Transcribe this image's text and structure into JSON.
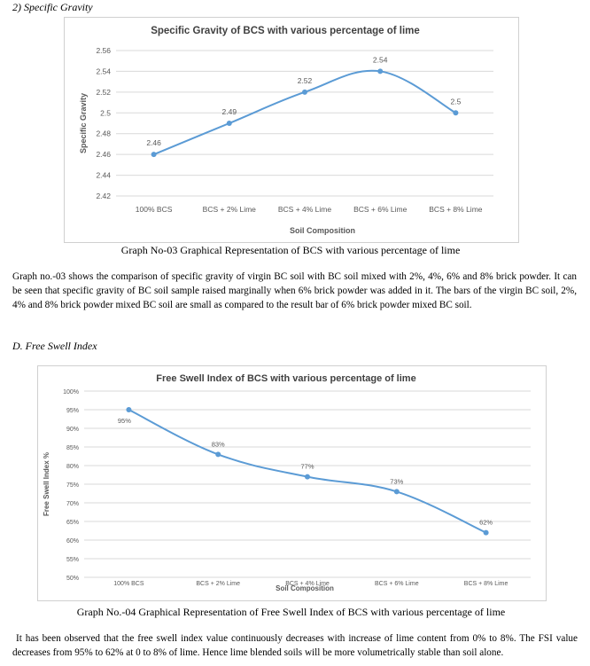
{
  "section_c": {
    "heading": "2)  Specific Gravity"
  },
  "section_d": {
    "heading": "D.   Free Swell Index"
  },
  "figure1_caption": "Graph No-03 Graphical Representation of BCS with various percentage of lime",
  "figure2_caption": "Graph No.-04 Graphical Representation of Free Swell Index of BCS with various percentage of lime",
  "paragraph1": "Graph no.-03 shows the comparison of specific gravity of virgin BC soil with BC soil mixed with 2%, 4%, 6% and 8% brick powder. It can be seen that specific gravity of BC soil sample raised marginally when 6% brick powder was added in it. The bars of the virgin BC soil, 2%, 4% and 8% brick powder mixed BC soil are small as compared to the result bar of 6% brick powder mixed BC soil.",
  "paragraph2": "It has been observed that the free swell index value continuously decreases with increase of lime content from 0% to 8%. The FSI value decreases from 95% to 62% at 0 to 8% of lime. Hence lime blended soils will be more volumetrically stable than soil alone.",
  "colors": {
    "line": "#5b9bd5",
    "grid": "#d9d9d9",
    "axis_text": "#595959",
    "title_text": "#404040"
  },
  "chart_data": [
    {
      "type": "line",
      "title": "Specific Gravity of BCS with various percentage of lime",
      "xlabel": "Soil Composition",
      "ylabel": "Specific Gravity",
      "categories": [
        "100% BCS",
        "BCS + 2% Lime",
        "BCS + 4% Lime",
        "BCS + 6% Lime",
        "BCS + 8% Lime"
      ],
      "values": [
        2.46,
        2.49,
        2.52,
        2.54,
        2.5
      ],
      "data_labels": [
        "2.46",
        "2.49",
        "2.52",
        "2.54",
        "2.5"
      ],
      "yticks": [
        "2.56",
        "2.54",
        "2.52",
        "2.5",
        "2.48",
        "2.46",
        "2.44",
        "2.42"
      ],
      "ylim": [
        2.42,
        2.56
      ],
      "grid": true,
      "smooth": true
    },
    {
      "type": "line",
      "title": "Free Swell Index of BCS with various percentage of lime",
      "xlabel": "Soil Composition",
      "ylabel": "Free Swell Index %",
      "categories": [
        "100% BCS",
        "BCS + 2% Lime",
        "BCS + 4% Lime",
        "BCS + 6% Lime",
        "BCS + 8% Lime"
      ],
      "values": [
        95,
        83,
        77,
        73,
        62
      ],
      "data_labels": [
        "95%",
        "83%",
        "77%",
        "73%",
        "62%"
      ],
      "yticks": [
        "100%",
        "95%",
        "90%",
        "85%",
        "80%",
        "75%",
        "70%",
        "65%",
        "60%",
        "55%",
        "50%"
      ],
      "ylim": [
        50,
        100
      ],
      "grid": true,
      "smooth": true
    }
  ]
}
